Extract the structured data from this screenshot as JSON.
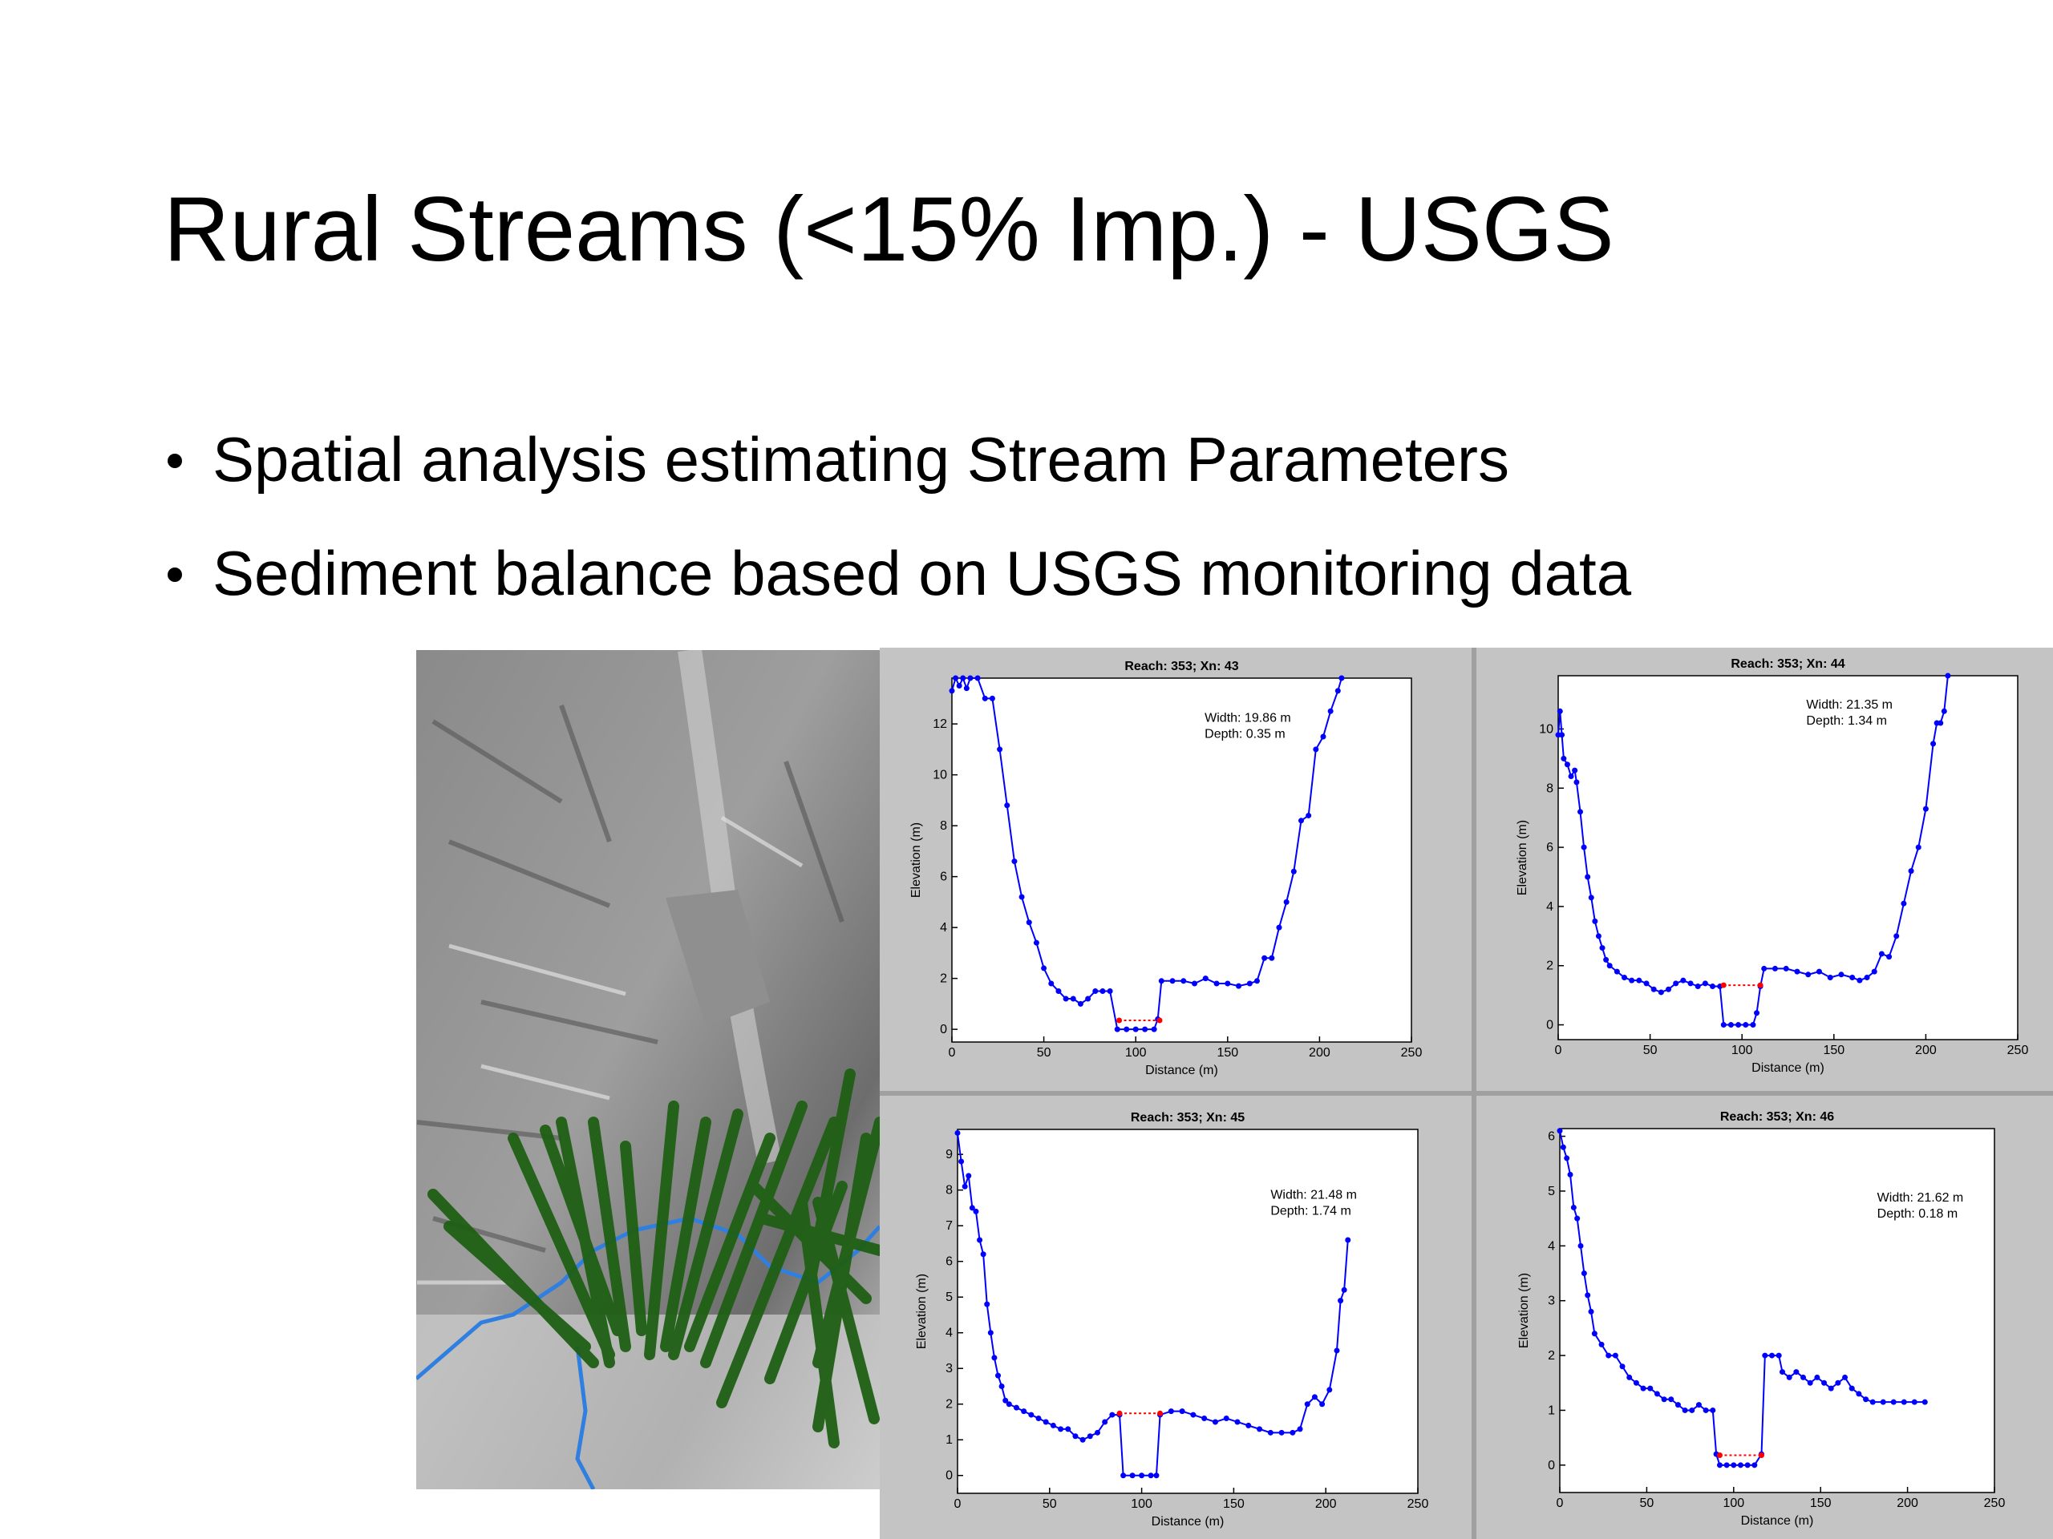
{
  "slide": {
    "title": "Rural Streams (<15% Imp.) - USGS",
    "bullets": [
      "Spatial analysis estimating Stream Parameters",
      "Sediment balance based on USGS monitoring data"
    ]
  },
  "chart_data": [
    {
      "type": "line",
      "title": "Reach: 353; Xn: 43",
      "x_label": "Distance (m)",
      "y_label": "Elevation (m)",
      "annotations": [
        "Width: 19.86 m",
        "Depth: 0.35 m"
      ],
      "xlim": [
        0,
        250
      ],
      "xticks": [
        0,
        50,
        100,
        150,
        200,
        250
      ],
      "ylim": [
        -0.5,
        13.8
      ],
      "yticks": [
        0,
        2,
        4,
        6,
        8,
        10,
        12
      ],
      "series": [
        {
          "color": "#0000ff",
          "style": "solid",
          "x": [
            0,
            2,
            4,
            6,
            8,
            10,
            14,
            18,
            22,
            26,
            30,
            34,
            38,
            42,
            46,
            50,
            54,
            58,
            62,
            66,
            70,
            74,
            78,
            82,
            86,
            90,
            95,
            100,
            105,
            110,
            112,
            114,
            120,
            126,
            132,
            138,
            144,
            150,
            156,
            162,
            166,
            170,
            174,
            178,
            182,
            186,
            190,
            194,
            198,
            202,
            206,
            210,
            212
          ],
          "values": [
            13.3,
            13.8,
            13.5,
            13.8,
            13.4,
            13.8,
            13.8,
            13,
            13,
            11,
            8.8,
            6.6,
            5.2,
            4.2,
            3.4,
            2.4,
            1.8,
            1.5,
            1.2,
            1.2,
            1.0,
            1.2,
            1.5,
            1.5,
            1.5,
            0,
            0,
            0,
            0,
            0,
            0.4,
            1.9,
            1.9,
            1.9,
            1.8,
            2.0,
            1.8,
            1.8,
            1.7,
            1.8,
            1.9,
            2.8,
            2.8,
            4.0,
            5.0,
            6.2,
            8.2,
            8.4,
            11,
            11.5,
            12.5,
            13.3,
            13.8
          ]
        },
        {
          "color": "#ff0000",
          "style": "dotted",
          "x": [
            91,
            113
          ],
          "values": [
            0.35,
            0.35
          ]
        }
      ]
    },
    {
      "type": "line",
      "title": "Reach: 353; Xn: 44",
      "x_label": "Distance (m)",
      "y_label": "Elevation (m)",
      "annotations": [
        "Width: 21.35 m",
        "Depth: 1.34 m"
      ],
      "xlim": [
        0,
        250
      ],
      "xticks": [
        0,
        50,
        100,
        150,
        200,
        250
      ],
      "ylim": [
        -0.5,
        11.8
      ],
      "yticks": [
        0,
        2,
        4,
        6,
        8,
        10
      ],
      "series": [
        {
          "color": "#0000ff",
          "style": "solid",
          "x": [
            0,
            1,
            2,
            3,
            5,
            7,
            9,
            10,
            12,
            14,
            16,
            18,
            20,
            22,
            24,
            26,
            28,
            32,
            36,
            40,
            44,
            48,
            52,
            56,
            60,
            64,
            68,
            72,
            76,
            80,
            84,
            88,
            90,
            94,
            98,
            102,
            106,
            108,
            110,
            112,
            118,
            124,
            130,
            136,
            142,
            148,
            154,
            160,
            164,
            168,
            172,
            176,
            180,
            184,
            188,
            192,
            196,
            200,
            204,
            206,
            208,
            210,
            212
          ],
          "values": [
            9.8,
            10.6,
            9.8,
            9,
            8.8,
            8.4,
            8.6,
            8.2,
            7.2,
            6.0,
            5.0,
            4.3,
            3.5,
            3.0,
            2.6,
            2.2,
            2.0,
            1.8,
            1.6,
            1.5,
            1.5,
            1.4,
            1.2,
            1.1,
            1.2,
            1.4,
            1.5,
            1.4,
            1.3,
            1.4,
            1.3,
            1.3,
            0,
            0,
            0,
            0,
            0,
            0.4,
            1.3,
            1.9,
            1.9,
            1.9,
            1.8,
            1.7,
            1.8,
            1.6,
            1.7,
            1.6,
            1.5,
            1.6,
            1.8,
            2.4,
            2.3,
            3.0,
            4.1,
            5.2,
            6.0,
            7.3,
            9.5,
            10.2,
            10.2,
            10.6,
            11.8
          ]
        },
        {
          "color": "#ff0000",
          "style": "dotted",
          "x": [
            90,
            110
          ],
          "values": [
            1.34,
            1.34
          ]
        }
      ]
    },
    {
      "type": "line",
      "title": "Reach: 353; Xn: 45",
      "x_label": "Distance (m)",
      "y_label": "Elevation (m)",
      "annotations": [
        "Width: 21.48 m",
        "Depth: 1.74 m"
      ],
      "xlim": [
        0,
        250
      ],
      "xticks": [
        0,
        50,
        100,
        150,
        200,
        250
      ],
      "ylim": [
        -0.5,
        9.7
      ],
      "yticks": [
        0,
        1,
        2,
        3,
        4,
        5,
        6,
        7,
        8,
        9
      ],
      "series": [
        {
          "color": "#0000ff",
          "style": "solid",
          "x": [
            0,
            2,
            4,
            6,
            8,
            10,
            12,
            14,
            16,
            18,
            20,
            22,
            24,
            26,
            28,
            32,
            36,
            40,
            44,
            48,
            52,
            56,
            60,
            64,
            68,
            72,
            76,
            80,
            84,
            88,
            90,
            95,
            100,
            105,
            108,
            110,
            116,
            122,
            128,
            134,
            140,
            146,
            152,
            158,
            164,
            170,
            176,
            182,
            186,
            190,
            194,
            198,
            202,
            206,
            208,
            210,
            212
          ],
          "values": [
            9.6,
            8.8,
            8.1,
            8.4,
            7.5,
            7.4,
            6.6,
            6.2,
            4.8,
            4.0,
            3.3,
            2.8,
            2.5,
            2.1,
            2.0,
            1.9,
            1.8,
            1.7,
            1.6,
            1.5,
            1.4,
            1.3,
            1.3,
            1.1,
            1.0,
            1.1,
            1.2,
            1.5,
            1.7,
            1.7,
            0,
            0,
            0,
            0,
            0,
            1.7,
            1.8,
            1.8,
            1.7,
            1.6,
            1.5,
            1.6,
            1.5,
            1.4,
            1.3,
            1.2,
            1.2,
            1.2,
            1.3,
            2.0,
            2.2,
            2.0,
            2.4,
            3.5,
            4.9,
            5.2,
            6.6
          ]
        },
        {
          "color": "#ff0000",
          "style": "dotted",
          "x": [
            88,
            110
          ],
          "values": [
            1.74,
            1.74
          ]
        }
      ]
    },
    {
      "type": "line",
      "title": "Reach: 353; Xn: 46",
      "x_label": "Distance (m)",
      "y_label": "Elevation (m)",
      "annotations": [
        "Width: 21.62 m",
        "Depth: 0.18 m"
      ],
      "xlim": [
        0,
        250
      ],
      "xticks": [
        0,
        50,
        100,
        150,
        200,
        250
      ],
      "ylim": [
        -0.5,
        6.14
      ],
      "yticks": [
        0,
        1,
        2,
        3,
        4,
        5,
        6
      ],
      "series": [
        {
          "color": "#0000ff",
          "style": "solid",
          "x": [
            0,
            2,
            4,
            6,
            8,
            10,
            12,
            14,
            16,
            18,
            20,
            24,
            28,
            32,
            36,
            40,
            44,
            48,
            52,
            56,
            60,
            64,
            68,
            72,
            76,
            80,
            84,
            88,
            90,
            92,
            96,
            100,
            104,
            108,
            112,
            116,
            118,
            122,
            126,
            128,
            132,
            136,
            140,
            144,
            148,
            152,
            156,
            160,
            164,
            168,
            172,
            176,
            180,
            186,
            192,
            198,
            204,
            210
          ],
          "values": [
            6.1,
            5.8,
            5.6,
            5.3,
            4.7,
            4.5,
            4.0,
            3.5,
            3.1,
            2.8,
            2.4,
            2.2,
            2.0,
            2.0,
            1.8,
            1.6,
            1.5,
            1.4,
            1.4,
            1.3,
            1.2,
            1.2,
            1.1,
            1.0,
            1.0,
            1.1,
            1.0,
            1.0,
            0.2,
            0,
            0,
            0,
            0,
            0,
            0,
            0.2,
            2.0,
            2.0,
            2.0,
            1.7,
            1.6,
            1.7,
            1.6,
            1.5,
            1.6,
            1.5,
            1.4,
            1.5,
            1.6,
            1.4,
            1.3,
            1.2,
            1.15,
            1.15,
            1.15,
            1.15,
            1.15,
            1.15
          ]
        },
        {
          "color": "#ff0000",
          "style": "dotted",
          "x": [
            92,
            116
          ],
          "values": [
            0.18,
            0.18
          ]
        }
      ]
    }
  ]
}
